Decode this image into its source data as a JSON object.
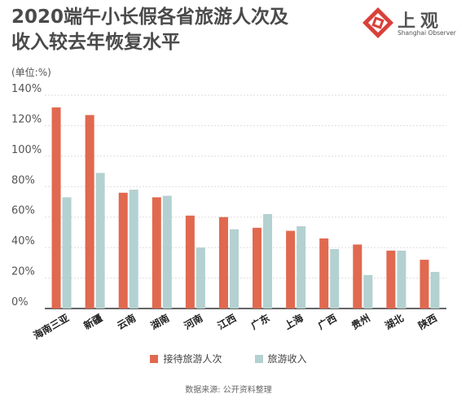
{
  "header": {
    "title_line1": "2020端午小长假各省旅游人次及",
    "title_line2": "收入较去年恢复水平",
    "unit": "(单位:%)"
  },
  "logo": {
    "name": "上观",
    "subtitle": "Shanghai Observer",
    "icon": "shanghai-observer-logo-icon",
    "color": "#d9403a"
  },
  "source": "数据来源: 公开资料整理",
  "colors": {
    "series1": "#e0694f",
    "series2": "#b3d1d0",
    "grid": "#dddddd",
    "axis": "#333333"
  },
  "chart_data": {
    "type": "bar",
    "title": "2020端午小长假各省旅游人次及收入较去年恢复水平",
    "ylabel": "(单位:%)",
    "ylim": [
      0,
      140
    ],
    "yticks": [
      0,
      20,
      40,
      60,
      80,
      100,
      120,
      140
    ],
    "ytick_labels": [
      "0%",
      "20%",
      "40%",
      "60%",
      "80%",
      "100%",
      "120%",
      "140%"
    ],
    "grid": true,
    "legend": "bottom",
    "categories": [
      "海南三亚",
      "新疆",
      "云南",
      "湖南",
      "河南",
      "江西",
      "广东",
      "上海",
      "广西",
      "贵州",
      "湖北",
      "陕西"
    ],
    "series": [
      {
        "name": "接待旅游人次",
        "values": [
          132,
          127,
          76,
          73,
          61,
          60,
          53,
          51,
          46,
          42,
          38,
          32
        ]
      },
      {
        "name": "旅游收入",
        "values": [
          73,
          89,
          78,
          74,
          40,
          52,
          62,
          54,
          39,
          22,
          38,
          24
        ]
      }
    ]
  }
}
